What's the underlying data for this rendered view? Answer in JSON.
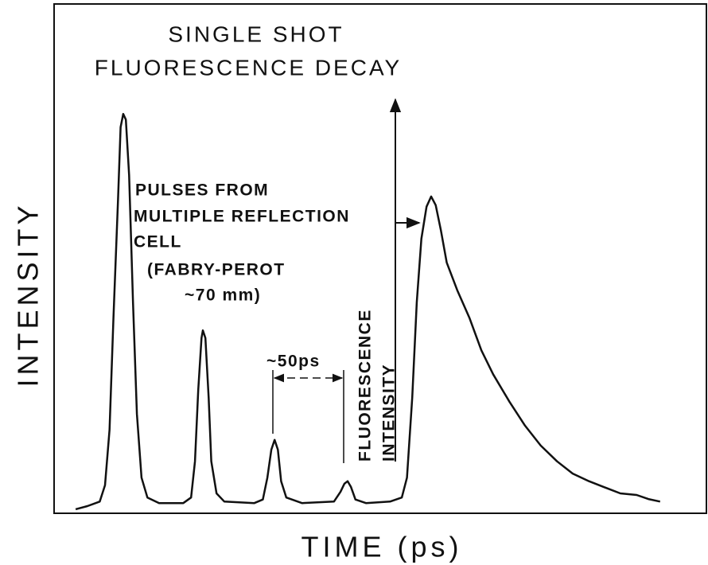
{
  "chart_data": {
    "type": "line",
    "title": [
      "SINGLE SHOT",
      "FLUORESCENCE DECAY"
    ],
    "x_label": "TIME (ps)",
    "y_label": "INTENSITY",
    "annotations": [
      "PULSES FROM",
      "MULTIPLE REFLECTION",
      "CELL",
      "(FABRY-PEROT",
      "~70 mm)",
      "~50ps",
      "FLUORESCENCE",
      "INTENSITY"
    ],
    "xlim": [
      0,
      100
    ],
    "ylim": [
      0,
      100
    ],
    "color": "#111111",
    "x": [
      3.3,
      5.1,
      7.0,
      7.8,
      8.5,
      9.1,
      9.8,
      10.2,
      10.6,
      11.0,
      11.5,
      12.1,
      12.7,
      13.4,
      14.3,
      16.1,
      19.8,
      21.0,
      21.6,
      22.1,
      22.6,
      22.8,
      23.2,
      23.7,
      24.1,
      24.9,
      26.1,
      30.7,
      32.0,
      32.7,
      33.3,
      33.8,
      34.3,
      34.8,
      35.6,
      38.0,
      42.9,
      43.9,
      44.5,
      45.0,
      45.5,
      46.2,
      47.8,
      51.5,
      53.3,
      54.1,
      54.9,
      55.6,
      56.3,
      57.1,
      57.8,
      58.5,
      59.3,
      60.2,
      61.8,
      63.7,
      65.5,
      67.3,
      69.8,
      72.2,
      74.6,
      77.1,
      79.5,
      82.0,
      84.4,
      86.8,
      89.3,
      91.1,
      92.9
    ],
    "values": [
      0.8,
      1.4,
      2.3,
      5.5,
      16.4,
      38.3,
      61.7,
      75.8,
      78.4,
      77.3,
      66.4,
      41.4,
      19.5,
      7.0,
      3.1,
      2.0,
      2.0,
      3.1,
      10.2,
      24.2,
      34.4,
      35.9,
      34.4,
      22.7,
      10.2,
      3.9,
      2.3,
      2.0,
      2.7,
      7.0,
      12.5,
      14.4,
      12.5,
      6.3,
      3.1,
      2.0,
      2.3,
      4.2,
      5.8,
      6.3,
      5.2,
      2.7,
      2.0,
      2.3,
      3.1,
      7.0,
      22.7,
      41.4,
      53.9,
      60.2,
      62.2,
      60.5,
      55.5,
      49.2,
      43.8,
      38.3,
      32.0,
      27.3,
      21.9,
      17.2,
      13.3,
      10.2,
      7.8,
      6.3,
      5.1,
      3.9,
      3.6,
      2.8,
      2.3
    ]
  }
}
